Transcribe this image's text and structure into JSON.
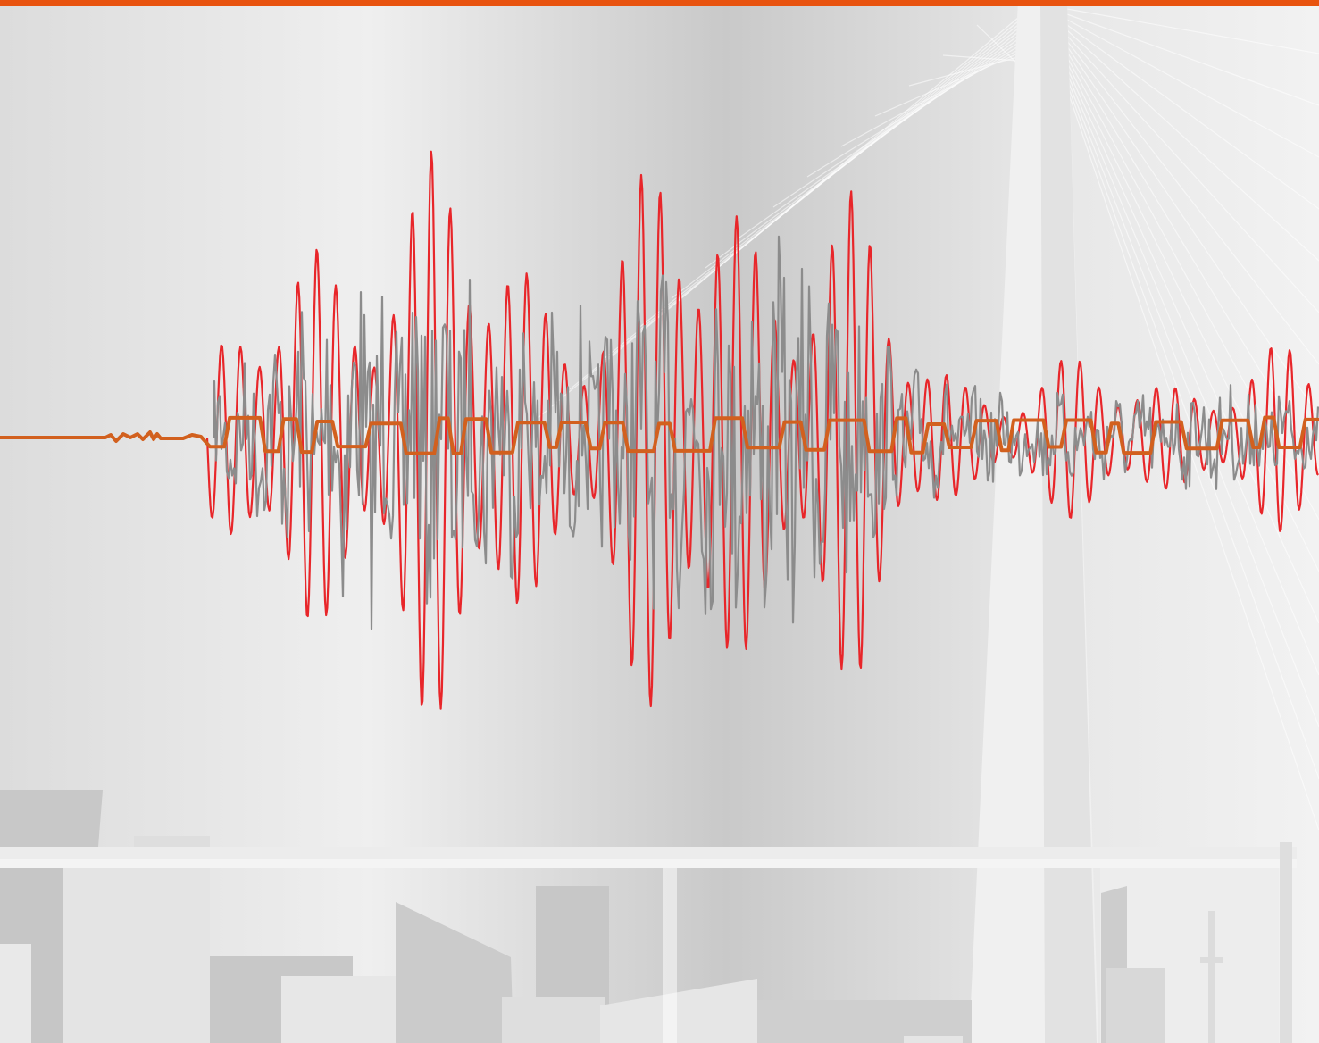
{
  "colors": {
    "top_bar": "#e8530f",
    "trace_red": "#e8262a",
    "trace_gray": "#8c8c8c",
    "trace_orange": "#d2601e",
    "structure_light": "#f1f1f1",
    "structure_mid": "#d2d2d2",
    "structure_dark": "#c3c3c3"
  },
  "icons": {
    "background": "bridge-pylon-illustration",
    "foreground": "city-skyline-silhouette"
  },
  "waveforms": [
    {
      "name": "red-trace",
      "color_key": "trace_red"
    },
    {
      "name": "gray-trace",
      "color_key": "trace_gray"
    },
    {
      "name": "orange-trace",
      "color_key": "trace_orange"
    }
  ]
}
